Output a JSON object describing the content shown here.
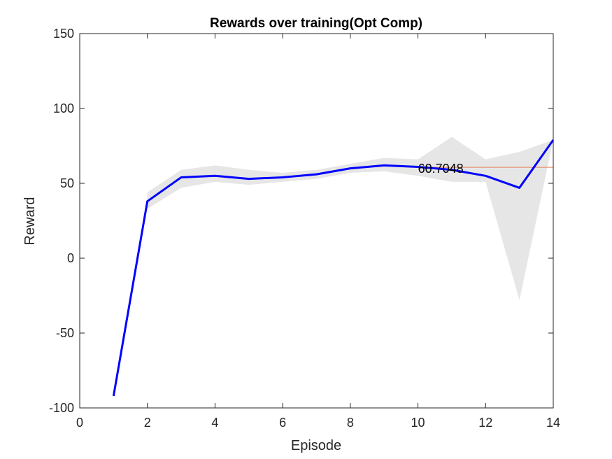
{
  "chart_data": {
    "type": "line",
    "title": "Rewards over training(Opt Comp)",
    "xlabel": "Episode",
    "ylabel": "Reward",
    "xlim": [
      0,
      14
    ],
    "ylim": [
      -100,
      150
    ],
    "xticks": [
      "0",
      "2",
      "4",
      "6",
      "8",
      "10",
      "12",
      "14"
    ],
    "yticks": [
      "-100",
      "-50",
      "0",
      "50",
      "100",
      "150"
    ],
    "grid": false,
    "series": [
      {
        "x": [
          1,
          2,
          3,
          4,
          5,
          6,
          7,
          8,
          9,
          10,
          11,
          12,
          13,
          14
        ],
        "values": [
          -92,
          38,
          54,
          55,
          53,
          54,
          56,
          60,
          62,
          61,
          59,
          55,
          47,
          79
        ],
        "color": "#0000ff"
      }
    ],
    "band": {
      "x": [
        2,
        3,
        4,
        5,
        6,
        7,
        8,
        9,
        10,
        11,
        12,
        13,
        14
      ],
      "upper": [
        44,
        59,
        62,
        59,
        57,
        59,
        63,
        67,
        66,
        81,
        66,
        71,
        79
      ],
      "lower": [
        33,
        47,
        51,
        49,
        51,
        53,
        57,
        58,
        55,
        51,
        51,
        -28,
        79
      ],
      "color": "#e6e6e6"
    },
    "reference_line": {
      "value": 60.7048,
      "x_start": 10,
      "x_end": 14,
      "label": "60.7048",
      "color": "#e8825a"
    }
  }
}
